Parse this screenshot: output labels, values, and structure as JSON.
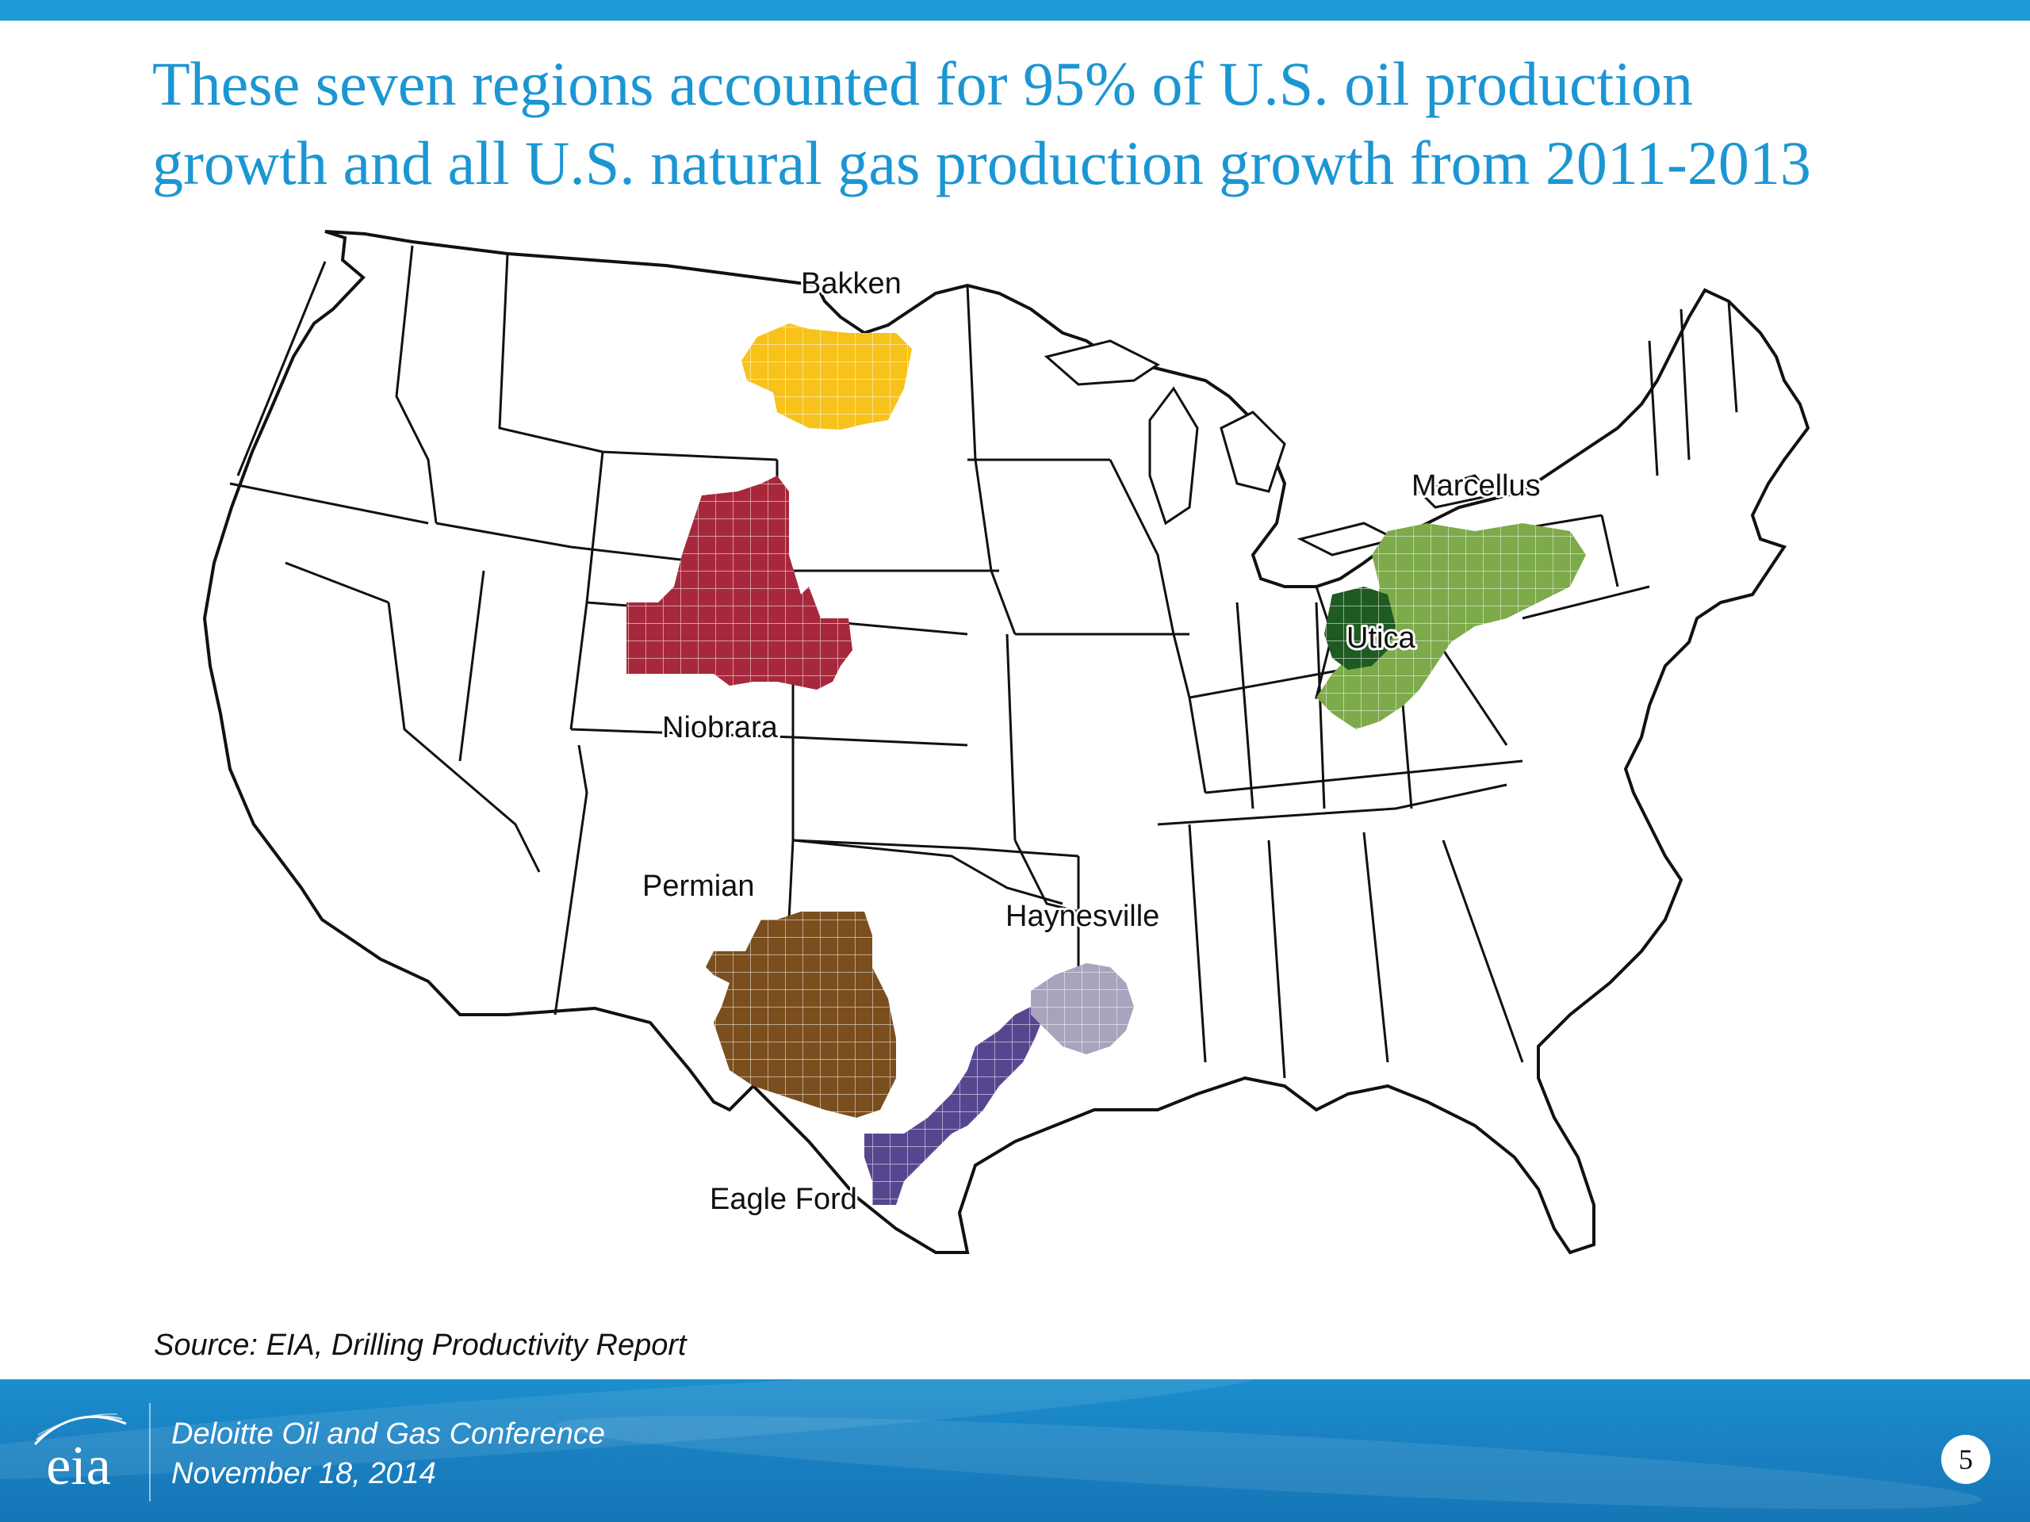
{
  "slide": {
    "title_line1": "These seven regions accounted for 95% of U.S. oil production",
    "title_line2": "growth and all U.S. natural gas production growth from 2011-2013",
    "source": "Source: EIA, Drilling Productivity Report",
    "page_number": "5"
  },
  "map": {
    "regions": [
      {
        "name": "Bakken",
        "color": "#f7c21a"
      },
      {
        "name": "Niobrara",
        "color": "#a7283c"
      },
      {
        "name": "Permian",
        "color": "#7a4e1d"
      },
      {
        "name": "Eagle Ford",
        "color": "#57468f"
      },
      {
        "name": "Haynesville",
        "color": "#a9a3bd"
      },
      {
        "name": "Marcellus",
        "color": "#7daa4a"
      },
      {
        "name": "Utica",
        "color": "#1f5a22"
      }
    ]
  },
  "footer": {
    "logo_text": "eia",
    "conference": "Deloitte Oil and Gas Conference",
    "date": "November 18, 2014"
  }
}
